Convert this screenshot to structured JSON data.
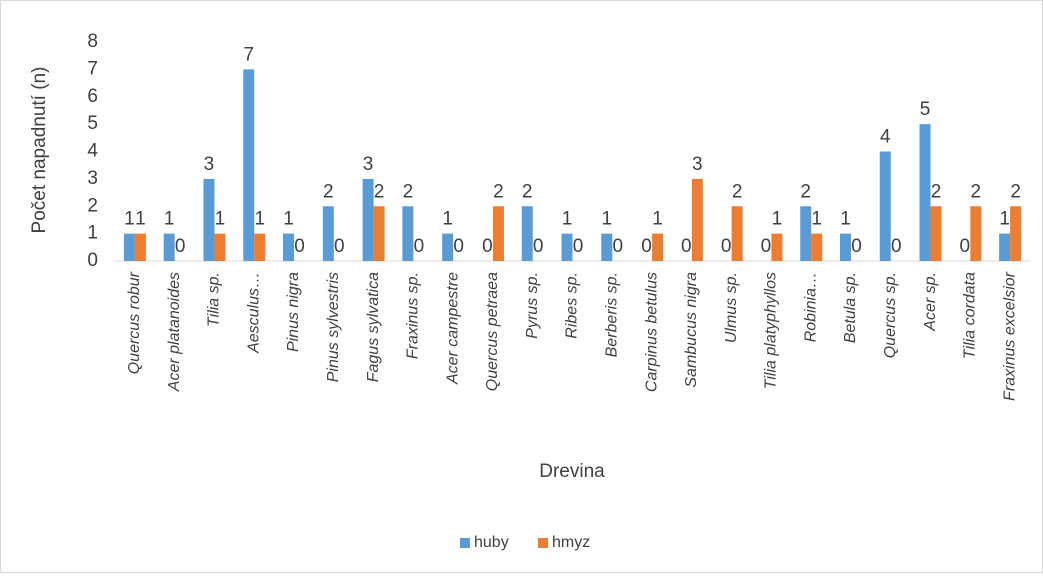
{
  "chart_data": {
    "type": "bar",
    "x_label": "Drevina",
    "y_label": "Počet napadnutí (n)",
    "categories": [
      "Quercus robur",
      "Acer platanoides",
      "Tilia sp.",
      "Aesculus…",
      "Pinus nigra",
      "Pinus sylvestris",
      "Fagus sylvatica",
      "Fraxinus sp.",
      "Acer campestre",
      "Quercus petraea",
      "Pyrus sp.",
      "Ribes sp.",
      "Berberis sp.",
      "Carpinus betulus",
      "Sambucus nigra",
      "Ulmus sp.",
      "Tilia platyphyllos",
      "Robinia…",
      "Betula sp.",
      "Quercus sp.",
      "Acer sp.",
      "Tilia cordata",
      "Fraxinus excelsior"
    ],
    "series": [
      {
        "name": "huby",
        "color": "#5b9bd5",
        "values": [
          1,
          1,
          3,
          7,
          1,
          2,
          3,
          2,
          1,
          0,
          2,
          1,
          1,
          0,
          0,
          0,
          0,
          2,
          1,
          4,
          5,
          0,
          1
        ]
      },
      {
        "name": "hmyz",
        "color": "#ed7d31",
        "values": [
          1,
          0,
          1,
          1,
          0,
          0,
          2,
          0,
          0,
          2,
          0,
          0,
          0,
          1,
          3,
          2,
          1,
          1,
          0,
          0,
          2,
          2,
          2
        ]
      }
    ],
    "ylim": [
      0,
      8
    ],
    "yticks": [
      0,
      1,
      2,
      3,
      4,
      5,
      6,
      7,
      8
    ],
    "legend": "bottom"
  }
}
